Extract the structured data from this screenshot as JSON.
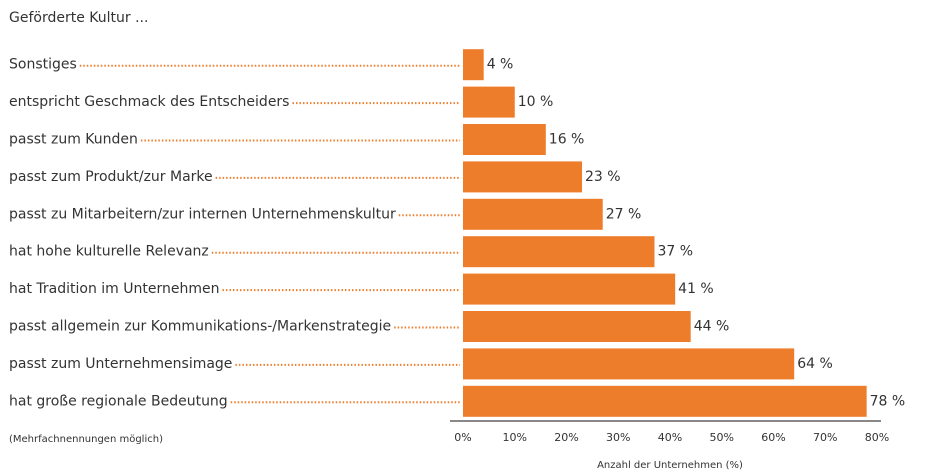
{
  "chart_data": {
    "type": "bar",
    "orientation": "horizontal",
    "title": "Geförderte Kultur ...",
    "note": "(Mehrfachnennungen möglich)",
    "x_label": "Anzahl der Unternehmen (%)",
    "categories": [
      "Sonstiges",
      "entspricht Geschmack des Entscheiders",
      "passt zum Kunden",
      "passt zum Produkt/zur Marke",
      "passt zu Mitarbeitern/zur internen Unternehmenskultur",
      "hat hohe kulturelle Relevanz",
      "hat Tradition im Unternehmen",
      "passt allgemein zur Kommunikations-/Markenstrategie",
      "passt zum Unternehmensimage",
      "hat große regionale Bedeutung"
    ],
    "values": [
      4,
      10,
      16,
      23,
      27,
      37,
      41,
      44,
      64,
      78
    ],
    "value_labels": [
      "4 %",
      "10 %",
      "16 %",
      "23 %",
      "27 %",
      "37 %",
      "41 %",
      "44 %",
      "64 %",
      "78 %"
    ],
    "color": "#ee7d2b",
    "xlim": [
      0,
      80
    ],
    "xticks": [
      {
        "value": 0,
        "label": "0%"
      },
      {
        "value": 10,
        "label": "10%"
      },
      {
        "value": 20,
        "label": "20%"
      },
      {
        "value": 30,
        "label": "30%"
      },
      {
        "value": 40,
        "label": "40%"
      },
      {
        "value": 50,
        "label": "50%"
      },
      {
        "value": 60,
        "label": "60%"
      },
      {
        "value": 70,
        "label": "70%"
      },
      {
        "value": 80,
        "label": "80%"
      }
    ]
  }
}
